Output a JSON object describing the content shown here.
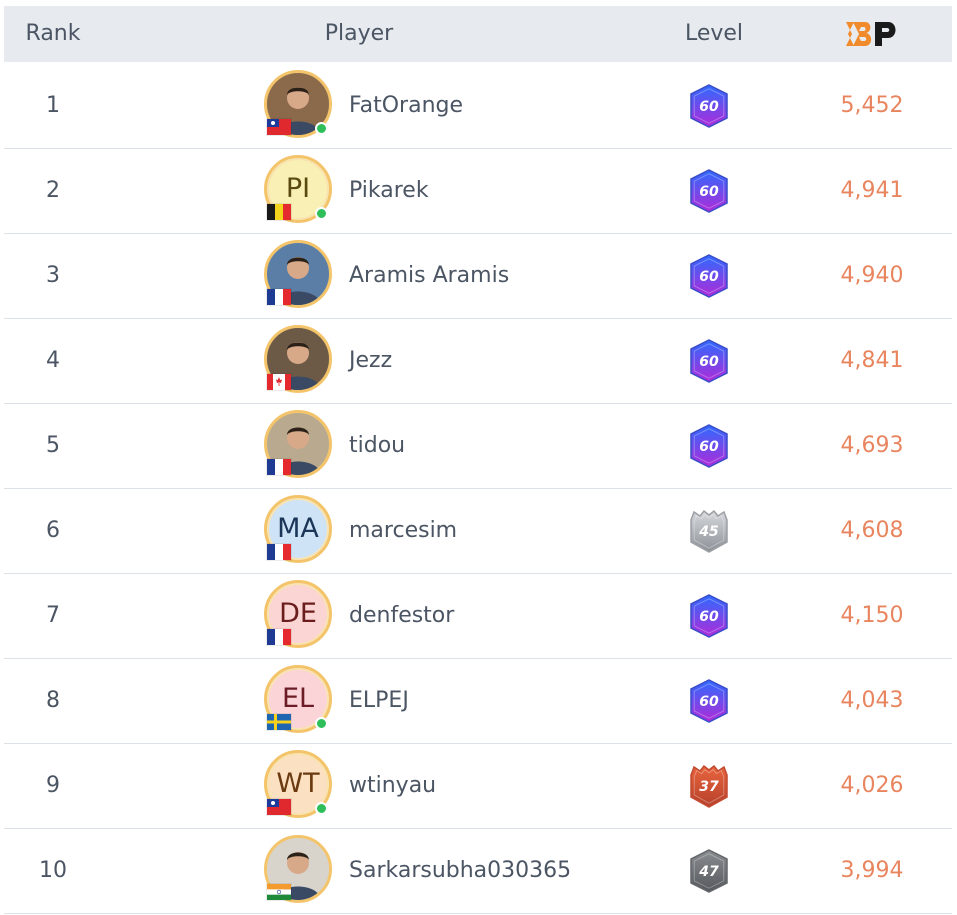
{
  "header": {
    "rank": "Rank",
    "player": "Player",
    "level": "Level",
    "bp_logo_text": "BP"
  },
  "colors": {
    "header_bg": "#e7ebf0",
    "points": "#e8855e",
    "online": "#2fbf5a",
    "badge_purple": "#7b2fe0",
    "badge_silver": "#a9adb3",
    "badge_bronze": "#d0563a",
    "badge_darkgray": "#6b6e73",
    "avatar_ring": "#f3c46a"
  },
  "rows": [
    {
      "rank": "1",
      "name": "FatOrange",
      "avatar": "photo",
      "initials": "",
      "avatar_bg": "#8a6a4a",
      "initials_color": "#000",
      "flag": "taiwan",
      "online": true,
      "level": "60",
      "badge": "purple",
      "points": "5,452"
    },
    {
      "rank": "2",
      "name": "Pikarek",
      "avatar": "initials",
      "initials": "PI",
      "avatar_bg": "#f8f0b4",
      "initials_color": "#5a4a10",
      "flag": "belgium",
      "online": true,
      "level": "60",
      "badge": "purple",
      "points": "4,941"
    },
    {
      "rank": "3",
      "name": "Aramis Aramis",
      "avatar": "photo",
      "initials": "",
      "avatar_bg": "#5b7ea6",
      "initials_color": "#000",
      "flag": "france",
      "online": false,
      "level": "60",
      "badge": "purple",
      "points": "4,940"
    },
    {
      "rank": "4",
      "name": "Jezz",
      "avatar": "photo",
      "initials": "",
      "avatar_bg": "#6d5a46",
      "initials_color": "#000",
      "flag": "canada",
      "online": false,
      "level": "60",
      "badge": "purple",
      "points": "4,841"
    },
    {
      "rank": "5",
      "name": "tidou",
      "avatar": "photo",
      "initials": "",
      "avatar_bg": "#b9a98e",
      "initials_color": "#000",
      "flag": "france",
      "online": false,
      "level": "60",
      "badge": "purple",
      "points": "4,693"
    },
    {
      "rank": "6",
      "name": "marcesim",
      "avatar": "initials",
      "initials": "MA",
      "avatar_bg": "#cfe3f6",
      "initials_color": "#1b3558",
      "flag": "france",
      "online": false,
      "level": "45",
      "badge": "silver",
      "points": "4,608"
    },
    {
      "rank": "7",
      "name": "denfestor",
      "avatar": "initials",
      "initials": "DE",
      "avatar_bg": "#fbd4d4",
      "initials_color": "#6b1c1c",
      "flag": "france",
      "online": false,
      "level": "60",
      "badge": "purple",
      "points": "4,150"
    },
    {
      "rank": "8",
      "name": "ELPEJ",
      "avatar": "initials",
      "initials": "EL",
      "avatar_bg": "#fbd4d8",
      "initials_color": "#6b1c24",
      "flag": "sweden",
      "online": true,
      "level": "60",
      "badge": "purple",
      "points": "4,043"
    },
    {
      "rank": "9",
      "name": "wtinyau",
      "avatar": "initials",
      "initials": "WT",
      "avatar_bg": "#fbe0c2",
      "initials_color": "#6b3a10",
      "flag": "taiwan",
      "online": true,
      "level": "37",
      "badge": "bronze",
      "points": "4,026"
    },
    {
      "rank": "10",
      "name": "Sarkarsubha030365",
      "avatar": "photo",
      "initials": "",
      "avatar_bg": "#d8d4cc",
      "initials_color": "#000",
      "flag": "india",
      "online": false,
      "level": "47",
      "badge": "darkgray",
      "points": "3,994"
    }
  ]
}
